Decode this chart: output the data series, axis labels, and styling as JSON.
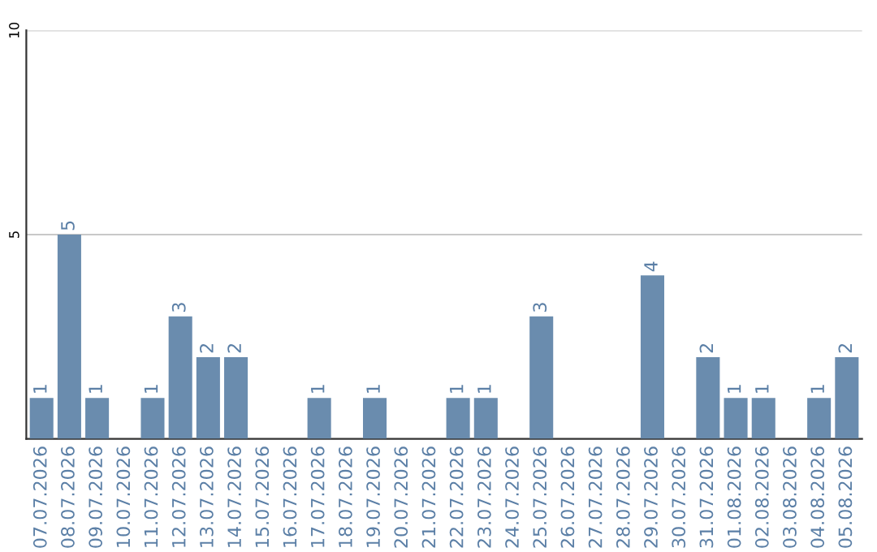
{
  "chart_data": {
    "type": "bar",
    "categories": [
      "07.07.2026",
      "08.07.2026",
      "09.07.2026",
      "10.07.2026",
      "11.07.2026",
      "12.07.2026",
      "13.07.2026",
      "14.07.2026",
      "15.07.2026",
      "16.07.2026",
      "17.07.2026",
      "18.07.2026",
      "19.07.2026",
      "20.07.2026",
      "21.07.2026",
      "22.07.2026",
      "23.07.2026",
      "24.07.2026",
      "25.07.2026",
      "26.07.2026",
      "27.07.2026",
      "28.07.2026",
      "29.07.2026",
      "30.07.2026",
      "31.07.2026",
      "01.08.2026",
      "02.08.2026",
      "03.08.2026",
      "04.08.2026",
      "05.08.2026"
    ],
    "values": [
      1,
      5,
      1,
      0,
      1,
      3,
      2,
      2,
      0,
      0,
      1,
      0,
      1,
      0,
      0,
      1,
      1,
      0,
      3,
      0,
      0,
      0,
      4,
      0,
      2,
      1,
      1,
      0,
      1,
      2
    ],
    "value_labels": [
      "1",
      "5",
      "1",
      null,
      "1",
      "3",
      "2",
      "2",
      null,
      null,
      "1",
      null,
      "1",
      null,
      null,
      "1",
      "1",
      null,
      "3",
      null,
      null,
      null,
      "4",
      null,
      "2",
      "1",
      "1",
      null,
      "1",
      "2"
    ],
    "color": "#6a8cae",
    "ylim": [
      0,
      10
    ],
    "yticks": [
      5,
      10
    ],
    "grid": "y"
  }
}
